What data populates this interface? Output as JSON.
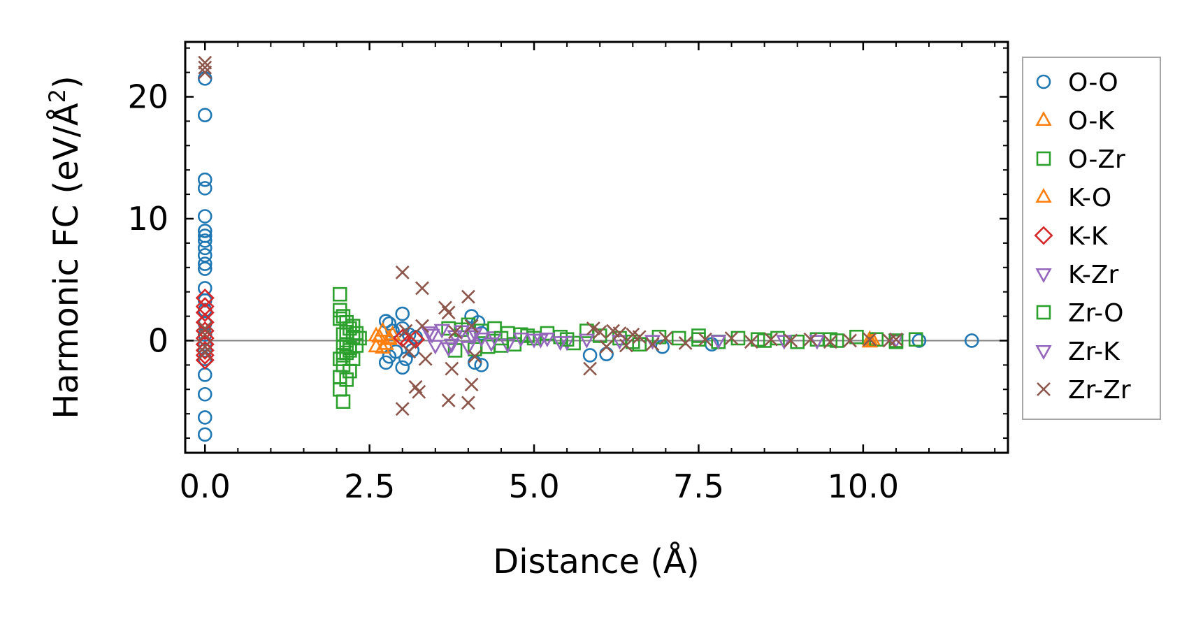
{
  "chart_data": {
    "type": "scatter",
    "xlabel": "Distance (Å)",
    "ylabel": "Harmonic FC (eV/Å²)",
    "ylabel_main": "Harmonic FC (eV/Å",
    "ylabel_sup": "2",
    "ylabel_end": ")",
    "xlim": [
      -0.3,
      12.2
    ],
    "ylim": [
      -9.2,
      24.5
    ],
    "xticks": [
      0.0,
      2.5,
      5.0,
      7.5,
      10.0
    ],
    "xtick_labels": [
      "0.0",
      "2.5",
      "5.0",
      "7.5",
      "10.0"
    ],
    "yticks": [
      0,
      10,
      20
    ],
    "ytick_labels": [
      "0",
      "10",
      "20"
    ],
    "reference_line_y": 0,
    "legend_position": "right, outside plot",
    "series": [
      {
        "name": "O-O",
        "marker": "circle",
        "color": "#1f77b4",
        "x": [
          0,
          0,
          0,
          0,
          0,
          0,
          0,
          0,
          0,
          0,
          0,
          0,
          0,
          0,
          0,
          0,
          0,
          0,
          0,
          0,
          0,
          0,
          0,
          0,
          2.75,
          2.75,
          2.8,
          2.8,
          2.85,
          2.9,
          3.0,
          3.0,
          3.0,
          3.05,
          3.1,
          3.15,
          3.2,
          4.05,
          4.1,
          4.15,
          4.2,
          4.2,
          5.85,
          6.1,
          6.95,
          7.7,
          10.85,
          11.65
        ],
        "y": [
          21.5,
          18.5,
          13.2,
          12.5,
          10.2,
          9.0,
          8.6,
          8.2,
          7.6,
          7.0,
          6.3,
          5.9,
          4.3,
          3.3,
          2.5,
          1.4,
          0.5,
          -0.3,
          -0.8,
          -1.5,
          -2.8,
          -4.4,
          -6.3,
          -7.7,
          1.6,
          -1.8,
          1.4,
          -1.3,
          0.8,
          -0.9,
          2.2,
          -2.2,
          1.0,
          -1.5,
          0.5,
          -0.8,
          0.3,
          2.0,
          -1.8,
          1.5,
          -2.0,
          0.6,
          -1.2,
          -1.1,
          -0.5,
          -0.3,
          0.0,
          0.0
        ]
      },
      {
        "name": "O-K",
        "marker": "triangle-up",
        "color": "#ff7f0e",
        "x": [
          2.6,
          2.65,
          2.7,
          2.75,
          2.8,
          2.85,
          10.1,
          10.15
        ],
        "y": [
          -0.5,
          0.3,
          0.8,
          -0.3,
          0.2,
          0.5,
          0.1,
          0.0
        ]
      },
      {
        "name": "O-Zr",
        "marker": "square",
        "color": "#2ca02c",
        "x": [
          2.05,
          2.05,
          2.05,
          2.05,
          2.05,
          2.1,
          2.1,
          2.1,
          2.1,
          2.1,
          2.15,
          2.15,
          2.15,
          2.15,
          2.2,
          2.2,
          2.2,
          2.25,
          2.25,
          2.3,
          2.3,
          2.35,
          3.7,
          3.8,
          3.9,
          4.0,
          4.1,
          4.2,
          4.3,
          4.4,
          4.5,
          4.6,
          4.7,
          4.8,
          4.9,
          5.0,
          5.2,
          5.4,
          5.6,
          5.8,
          6.0,
          6.3,
          6.6,
          6.9,
          7.2,
          7.5,
          7.8,
          8.1,
          8.4,
          8.7,
          9.0,
          9.3,
          9.6,
          9.9,
          10.2,
          10.5,
          10.8
        ],
        "y": [
          3.8,
          2.5,
          -1.5,
          -3.0,
          -4.0,
          2.0,
          0.5,
          -0.5,
          -2.0,
          -5.0,
          1.5,
          -0.3,
          -1.0,
          -3.2,
          1.0,
          -0.8,
          -2.5,
          1.2,
          -1.5,
          0.6,
          -0.4,
          0.2,
          1.0,
          -0.8,
          0.9,
          1.3,
          -0.7,
          0.8,
          -0.5,
          1.0,
          -0.4,
          0.6,
          -0.3,
          0.5,
          0.4,
          0.2,
          0.6,
          0.3,
          -0.2,
          0.8,
          0.4,
          0.2,
          -0.3,
          0.3,
          0.2,
          0.4,
          -0.1,
          0.2,
          0.1,
          0.2,
          -0.1,
          0.1,
          0.0,
          0.3,
          0.1,
          -0.1,
          0.1
        ]
      },
      {
        "name": "K-O",
        "marker": "triangle-up",
        "color": "#ff7f0e",
        "x": [
          2.6,
          2.7,
          2.8,
          10.1
        ],
        "y": [
          0.4,
          -0.6,
          0.1,
          -0.1
        ]
      },
      {
        "name": "K-K",
        "marker": "diamond",
        "color": "#d62728",
        "x": [
          0,
          0,
          0,
          0,
          0,
          0,
          0,
          0,
          0,
          0,
          3.0,
          3.1,
          3.2
        ],
        "y": [
          3.5,
          2.8,
          2.3,
          1.5,
          0.8,
          0.2,
          -0.3,
          -0.8,
          -1.2,
          -1.6,
          0.2,
          -0.2,
          0.1
        ]
      },
      {
        "name": "K-Zr",
        "marker": "triangle-down",
        "color": "#9467bd",
        "x": [
          3.4,
          3.5,
          3.6,
          3.7,
          3.8,
          3.9,
          4.0,
          4.1,
          4.2,
          4.4,
          4.6,
          4.8,
          5.0,
          5.2,
          5.5,
          5.8,
          6.3,
          7.8,
          8.8,
          10.5
        ],
        "y": [
          0.7,
          -0.4,
          0.9,
          -0.6,
          0.4,
          0.8,
          -0.5,
          0.6,
          0.2,
          0.3,
          -0.3,
          0.2,
          0.1,
          0.2,
          -0.1,
          0.1,
          0.0,
          0.0,
          0.0,
          0.1
        ]
      },
      {
        "name": "Zr-O",
        "marker": "square",
        "color": "#2ca02c",
        "x": [
          2.05,
          2.1,
          2.15,
          2.2,
          2.25,
          4.5,
          5.5,
          6.5,
          7.5,
          8.5,
          9.5,
          10.5
        ],
        "y": [
          1.8,
          -1.2,
          0.7,
          -0.6,
          0.3,
          0.2,
          0.1,
          -0.1,
          0.1,
          0.0,
          0.1,
          0.0
        ]
      },
      {
        "name": "Zr-K",
        "marker": "triangle-down",
        "color": "#9467bd",
        "x": [
          3.45,
          3.75,
          4.05,
          4.35,
          5.1,
          5.4,
          6.8,
          9.3
        ],
        "y": [
          0.5,
          -0.3,
          0.4,
          -0.2,
          0.1,
          -0.1,
          0.0,
          0.0
        ]
      },
      {
        "name": "Zr-Zr",
        "marker": "x",
        "color": "#8c564b",
        "x": [
          0,
          0,
          0,
          0,
          0,
          0,
          0,
          3.0,
          3.0,
          3.05,
          3.1,
          3.2,
          3.25,
          3.3,
          3.3,
          3.35,
          3.65,
          3.7,
          3.7,
          3.75,
          3.8,
          4.0,
          4.0,
          4.05,
          4.05,
          4.1,
          5.85,
          5.9,
          6.0,
          6.1,
          6.2,
          6.3,
          6.4,
          6.5,
          6.6,
          6.8,
          7.0,
          7.3,
          7.6,
          8.0,
          8.3,
          8.6,
          8.9,
          9.2,
          9.5,
          9.8,
          10.1,
          10.4,
          10.5
        ],
        "y": [
          22.8,
          22.4,
          22.0,
          1.0,
          0.5,
          -0.5,
          -1.0,
          5.6,
          -5.6,
          0.8,
          -0.9,
          -3.8,
          -4.2,
          4.3,
          1.2,
          -1.5,
          2.7,
          2.3,
          -4.9,
          -2.3,
          0.7,
          3.6,
          -5.1,
          -3.6,
          1.2,
          -1.3,
          -2.3,
          1.0,
          0.7,
          -0.5,
          0.8,
          0.6,
          -0.4,
          0.5,
          0.3,
          -0.3,
          0.2,
          -0.2,
          0.1,
          0.2,
          -0.1,
          0.1,
          0.0,
          0.1,
          -0.1,
          0.0,
          0.1,
          0.0,
          0.1
        ]
      }
    ]
  }
}
